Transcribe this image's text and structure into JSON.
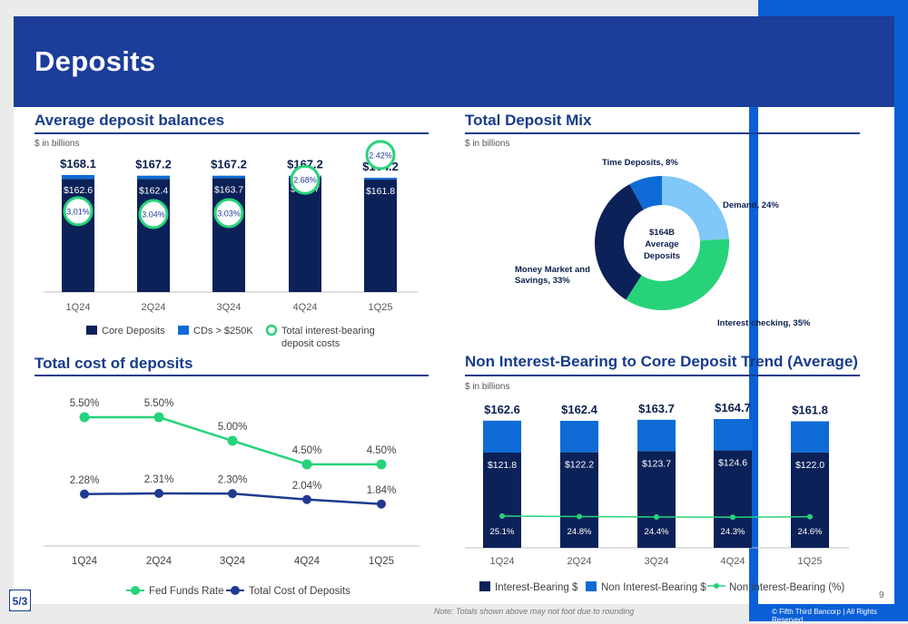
{
  "page": {
    "title": "Deposits",
    "page_number": "9",
    "note": "Note: Totals shown above may not foot due to rounding",
    "copyright": "© Fifth Third Bancorp | All Rights Reserved",
    "colors": {
      "navy": "#0b2158",
      "blue": "#0e6bd6",
      "green": "#27d37a",
      "light_blue": "#7fc8f8",
      "title_bar": "#1c3d9a"
    }
  },
  "sections": {
    "avg": {
      "title": "Average deposit balances",
      "subtitle": "$ in billions"
    },
    "mix": {
      "title": "Total Deposit Mix",
      "subtitle": "$ in billions"
    },
    "cost": {
      "title": "Total cost of deposits"
    },
    "trend": {
      "title": "Non Interest-Bearing to Core Deposit Trend (Average)",
      "subtitle": "$ in billions"
    }
  },
  "chart_data": [
    {
      "type": "bar",
      "title": "Average deposit balances",
      "categories": [
        "1Q24",
        "2Q24",
        "3Q24",
        "4Q24",
        "1Q25"
      ],
      "totals": [
        "$168.1",
        "$167.2",
        "$167.2",
        "$167.2",
        "$164.2"
      ],
      "total_values": [
        168.1,
        167.2,
        167.2,
        167.2,
        164.2
      ],
      "series": [
        {
          "name": "Core Deposits",
          "values": [
            162.6,
            162.4,
            163.7,
            164.7,
            161.8
          ],
          "labels": [
            "$162.6",
            "$162.4",
            "$163.7",
            "$164.7",
            "$161.8"
          ],
          "color": "#0b2158"
        },
        {
          "name": "CDs > $250K",
          "values": [
            5.5,
            4.8,
            3.5,
            2.5,
            2.4
          ],
          "color": "#0e6bd6"
        },
        {
          "name": "Total interest-bearing deposit costs",
          "values": [
            3.01,
            3.04,
            3.03,
            2.68,
            2.42
          ],
          "labels": [
            "3.01%",
            "3.04%",
            "3.03%",
            "2.68%",
            "2.42%"
          ],
          "color": "#27d37a"
        }
      ],
      "legend": [
        "Core Deposits",
        "CDs > $250K",
        "Total interest-bearing",
        "deposit costs"
      ]
    },
    {
      "type": "pie",
      "title": "Total Deposit Mix",
      "center_label": [
        "$164B",
        "Average",
        "Deposits"
      ],
      "slices": [
        {
          "label": "Demand, 24%",
          "value": 24,
          "color": "#7fc8f8"
        },
        {
          "label": "Interest checking, 35%",
          "value": 35,
          "color": "#27d37a"
        },
        {
          "label": "Money Market and",
          "label2": "Savings, 33%",
          "value": 33,
          "color": "#0b2158"
        },
        {
          "label": "Time Deposits, 8%",
          "value": 8,
          "color": "#0e6bd6"
        }
      ]
    },
    {
      "type": "line",
      "title": "Total cost of deposits",
      "categories": [
        "1Q24",
        "2Q24",
        "3Q24",
        "4Q24",
        "1Q25"
      ],
      "series": [
        {
          "name": "Fed Funds Rate",
          "values": [
            5.5,
            5.5,
            5.0,
            4.5,
            4.5
          ],
          "labels": [
            "5.50%",
            "5.50%",
            "5.00%",
            "4.50%",
            "4.50%"
          ],
          "color": "#27d37a"
        },
        {
          "name": "Total Cost of Deposits",
          "values": [
            2.28,
            2.31,
            2.3,
            2.04,
            1.84
          ],
          "labels": [
            "2.28%",
            "2.31%",
            "2.30%",
            "2.04%",
            "1.84%"
          ],
          "color": "#1f3a8f"
        }
      ]
    },
    {
      "type": "bar",
      "title": "Non Interest-Bearing to Core Deposit Trend (Average)",
      "categories": [
        "1Q24",
        "2Q24",
        "3Q24",
        "4Q24",
        "1Q25"
      ],
      "totals": [
        "$162.6",
        "$162.4",
        "$163.7",
        "$164.7",
        "$161.8"
      ],
      "total_values": [
        162.6,
        162.4,
        163.7,
        164.7,
        161.8
      ],
      "series": [
        {
          "name": "Interest-Bearing $",
          "values": [
            121.8,
            122.2,
            123.7,
            124.6,
            122.0
          ],
          "labels": [
            "$121.8",
            "$122.2",
            "$123.7",
            "$124.6",
            "$122.0"
          ],
          "color": "#0b2158"
        },
        {
          "name": "Non Interest-Bearing $",
          "values": [
            40.8,
            40.2,
            40.0,
            40.1,
            39.8
          ],
          "color": "#0e6bd6"
        },
        {
          "name": "Non Interest-Bearing (%)",
          "values": [
            25.1,
            24.8,
            24.4,
            24.3,
            24.6
          ],
          "labels": [
            "25.1%",
            "24.8%",
            "24.4%",
            "24.3%",
            "24.6%"
          ],
          "color": "#27d37a"
        }
      ]
    }
  ]
}
